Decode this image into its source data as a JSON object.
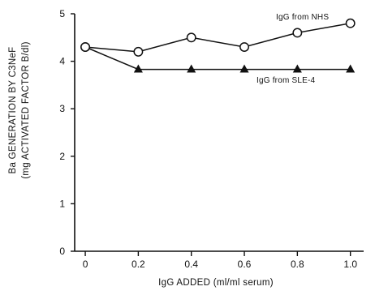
{
  "chart_data": {
    "type": "line",
    "title": "",
    "xlabel": "IgG ADDED (ml/ml serum)",
    "ylabel_line1": "Ba GENERATION BY C3NeF",
    "ylabel_line2": "(mg ACTIVATED FACTOR B/dl)",
    "xlim": [
      -0.04,
      1.05
    ],
    "ylim": [
      0,
      5
    ],
    "xticks": [
      0,
      0.2,
      0.4,
      0.6,
      0.8,
      1.0
    ],
    "xtick_labels": [
      "0",
      "0.2",
      "0.4",
      "0.6",
      "0.8",
      "1.0"
    ],
    "yticks": [
      0,
      1,
      2,
      3,
      4,
      5
    ],
    "ytick_labels": [
      "0",
      "1",
      "2",
      "3",
      "4",
      "5"
    ],
    "grid": false,
    "legend": "inline labels",
    "series": [
      {
        "name": "IgG from NHS",
        "marker": "open-circle",
        "x": [
          0,
          0.2,
          0.4,
          0.6,
          0.8,
          1.0
        ],
        "y": [
          4.3,
          4.2,
          4.5,
          4.3,
          4.6,
          4.8
        ]
      },
      {
        "name": "IgG from SLE-4",
        "marker": "filled-triangle",
        "x": [
          0,
          0.2,
          0.4,
          0.6,
          0.8,
          1.0
        ],
        "y": [
          4.3,
          3.83,
          3.83,
          3.83,
          3.83,
          3.83
        ]
      }
    ]
  }
}
